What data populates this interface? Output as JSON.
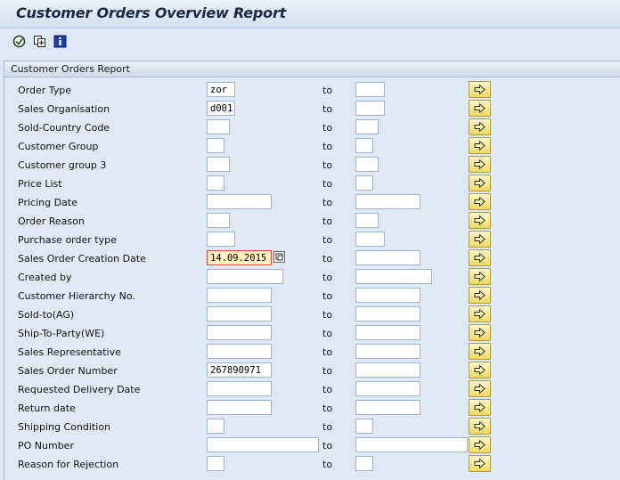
{
  "window": {
    "title": "Customer Orders Overview Report"
  },
  "toolbar": {
    "buttons": [
      {
        "icon": "execute-icon"
      },
      {
        "icon": "get-variant-icon"
      },
      {
        "icon": "info-icon"
      }
    ]
  },
  "frame": {
    "title": "Customer Orders Report"
  },
  "to_label": "to",
  "rows": [
    {
      "label": "Order Type",
      "from": "zor",
      "to": ""
    },
    {
      "label": "Sales Organisation",
      "from": "d001",
      "to": ""
    },
    {
      "label": "Sold-Country Code",
      "from": "",
      "to": ""
    },
    {
      "label": "Customer Group",
      "from": "",
      "to": ""
    },
    {
      "label": "Customer group 3",
      "from": "",
      "to": ""
    },
    {
      "label": "Price List",
      "from": "",
      "to": ""
    },
    {
      "label": "Pricing Date",
      "from": "",
      "to": ""
    },
    {
      "label": "Order Reason",
      "from": "",
      "to": ""
    },
    {
      "label": "Purchase order type",
      "from": "",
      "to": ""
    },
    {
      "label": "Sales Order Creation Date",
      "from": "14.09.2015",
      "to": ""
    },
    {
      "label": "Created by",
      "from": "",
      "to": ""
    },
    {
      "label": "Customer Hierarchy No.",
      "from": "",
      "to": ""
    },
    {
      "label": "Sold-to(AG)",
      "from": "",
      "to": ""
    },
    {
      "label": "Ship-To-Party(WE)",
      "from": "",
      "to": ""
    },
    {
      "label": "Sales Representative",
      "from": "",
      "to": ""
    },
    {
      "label": "Sales Order Number",
      "from": "267890971",
      "to": ""
    },
    {
      "label": "Requested Delivery Date",
      "from": "",
      "to": ""
    },
    {
      "label": "Return date",
      "from": "",
      "to": ""
    },
    {
      "label": "Shipping Condition",
      "from": "",
      "to": ""
    },
    {
      "label": "PO Number",
      "from": "",
      "to": ""
    },
    {
      "label": "Reason for Rejection",
      "from": "",
      "to": ""
    }
  ],
  "icons": {
    "multiple_selection": "arrow-right-icon",
    "calendar_picker": "calendar-picker-icon"
  },
  "colors": {
    "field_active_bg": "#fff6bf",
    "button_yellow": "#f1da5a",
    "background": "#dfe9f5"
  }
}
